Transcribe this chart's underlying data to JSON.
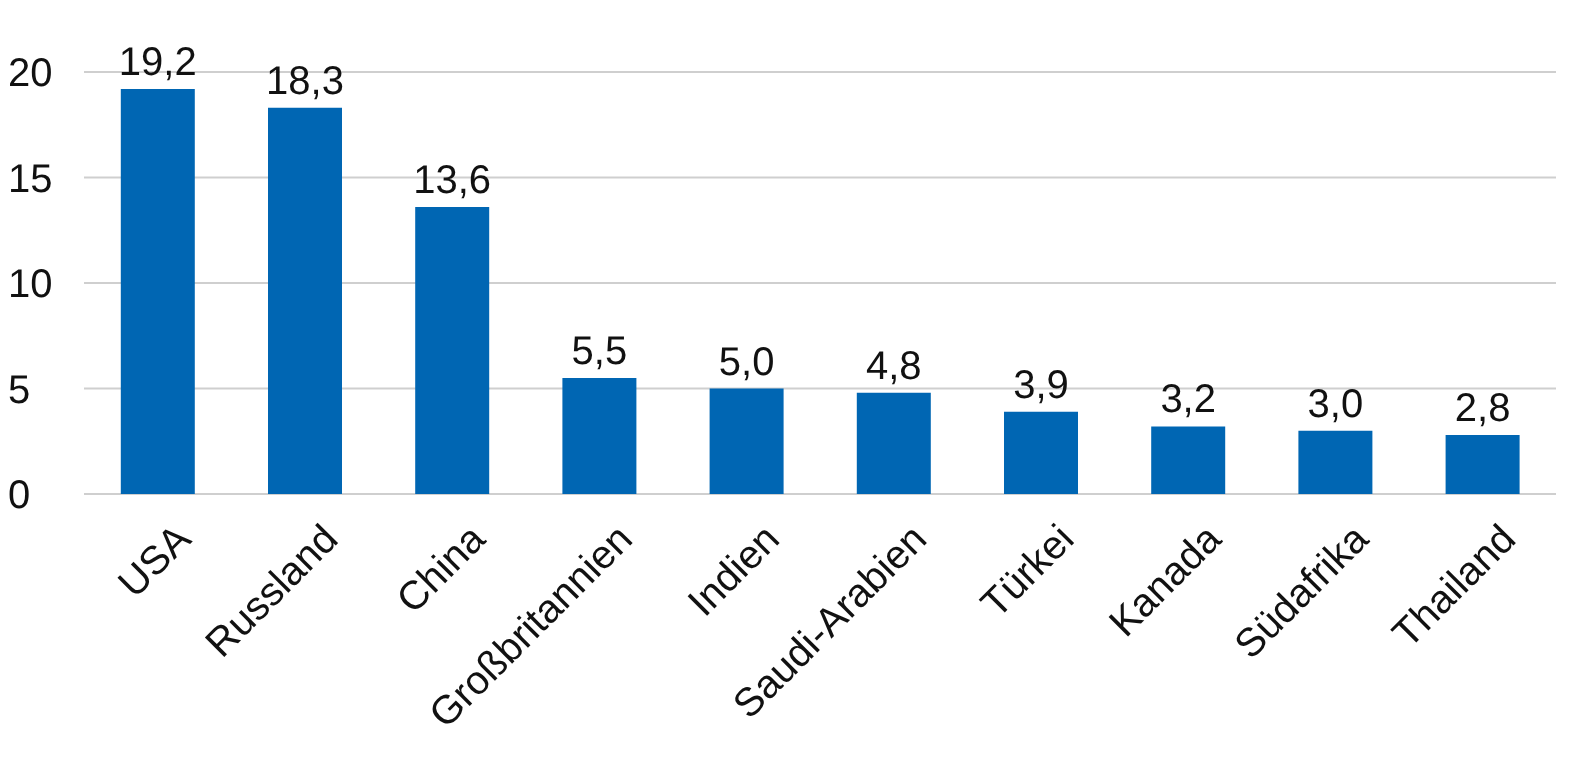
{
  "chart_data": {
    "type": "bar",
    "categories": [
      "USA",
      "Russland",
      "China",
      "Großbritannien",
      "Indien",
      "Saudi-Arabien",
      "Türkei",
      "Kanada",
      "Südafrika",
      "Thailand"
    ],
    "values": [
      19.2,
      18.3,
      13.6,
      5.5,
      5.0,
      4.8,
      3.9,
      3.2,
      3.0,
      2.8
    ],
    "value_labels": [
      "19,2",
      "18,3",
      "13,6",
      "5,5",
      "5,0",
      "4,8",
      "3,9",
      "3,2",
      "3,0",
      "2,8"
    ],
    "color": "#0066b3",
    "ylim": [
      0,
      20
    ],
    "yticks": [
      0,
      5,
      10,
      15,
      20
    ],
    "grid": "y"
  }
}
